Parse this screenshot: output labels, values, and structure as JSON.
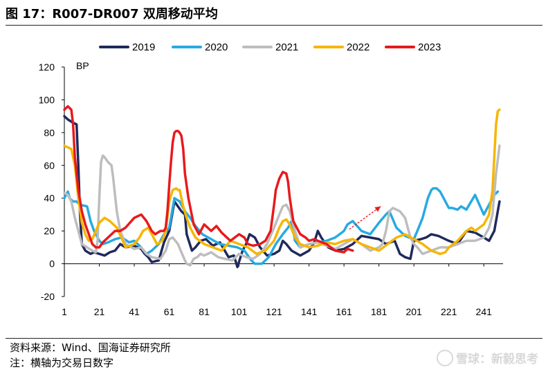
{
  "header": {
    "title": "图 17：R007-DR007 双周移动平均"
  },
  "footer": {
    "source": "资料来源：Wind、国海证券研究所",
    "note": "注：横轴为交易日数字"
  },
  "watermark": {
    "text": "雪球：新毅思考"
  },
  "chart_data": {
    "type": "line",
    "title": "",
    "xlabel": "",
    "ylabel": "BP",
    "xlim": [
      1,
      252
    ],
    "ylim": [
      -20,
      120
    ],
    "xticks": [
      1,
      21,
      41,
      61,
      81,
      101,
      121,
      141,
      161,
      181,
      201,
      221,
      241
    ],
    "yticks": [
      -20,
      0,
      20,
      40,
      60,
      80,
      100,
      120
    ],
    "legend_position": "top",
    "grid": false,
    "colors": {
      "2019": "#1f2a5c",
      "2020": "#27aae1",
      "2021": "#bdbdbd",
      "2022": "#f7b500",
      "2023": "#e8191c",
      "arrow": "#e8191c"
    },
    "series": [
      {
        "name": "2019",
        "x": [
          1,
          3,
          6,
          8,
          9,
          10,
          11,
          12,
          13,
          16,
          18,
          21,
          24,
          27,
          30,
          33,
          36,
          41,
          45,
          47,
          49,
          51,
          55,
          58,
          61,
          64,
          66,
          68,
          70,
          71,
          74,
          76,
          79,
          82,
          86,
          90,
          95,
          98,
          100,
          103,
          105,
          107,
          110,
          113,
          117,
          121,
          124,
          126,
          128,
          131,
          136,
          141,
          144,
          146,
          148,
          152,
          156,
          161,
          166,
          171,
          176,
          181,
          185,
          190,
          193,
          196,
          199,
          201,
          205,
          208,
          211,
          215,
          221,
          226,
          231,
          236,
          241,
          244,
          247,
          249,
          250
        ],
        "y": [
          90,
          88,
          86,
          85,
          60,
          30,
          12,
          10,
          8,
          6,
          7,
          6,
          5,
          7,
          8,
          12,
          10,
          11,
          9,
          6,
          4,
          1,
          2,
          13,
          20,
          38,
          35,
          32,
          30,
          18,
          8,
          10,
          14,
          15,
          11,
          13,
          4,
          5,
          -2,
          8,
          12,
          18,
          16,
          10,
          5,
          6,
          8,
          14,
          12,
          8,
          5,
          8,
          13,
          20,
          16,
          10,
          8,
          9,
          12,
          17,
          16,
          15,
          12,
          14,
          6,
          4,
          3,
          14,
          15,
          16,
          18,
          17,
          14,
          12,
          20,
          19,
          16,
          14,
          20,
          32,
          38
        ]
      },
      {
        "name": "2020",
        "x": [
          1,
          3,
          4,
          6,
          8,
          10,
          14,
          16,
          18,
          20,
          21,
          23,
          26,
          30,
          34,
          38,
          41,
          45,
          48,
          51,
          55,
          58,
          61,
          64,
          67,
          70,
          73,
          76,
          80,
          85,
          90,
          95,
          100,
          104,
          106,
          108,
          110,
          114,
          118,
          122,
          126,
          129,
          131,
          133,
          136,
          141,
          146,
          151,
          156,
          161,
          163,
          166,
          171,
          176,
          181,
          185,
          187,
          191,
          196,
          201,
          203,
          206,
          209,
          211,
          212,
          214,
          216,
          221,
          223,
          226,
          228,
          231,
          236,
          241,
          245,
          247,
          249
        ],
        "y": [
          40,
          44,
          40,
          38,
          38,
          36,
          35,
          26,
          20,
          16,
          14,
          12,
          13,
          15,
          16,
          13,
          14,
          10,
          6,
          8,
          12,
          18,
          22,
          40,
          38,
          32,
          28,
          23,
          18,
          15,
          12,
          11,
          10,
          8,
          5,
          2,
          0,
          0,
          4,
          12,
          18,
          22,
          26,
          14,
          10,
          12,
          13,
          14,
          16,
          20,
          24,
          26,
          20,
          18,
          25,
          30,
          32,
          22,
          17,
          15,
          20,
          28,
          40,
          45,
          46,
          46,
          44,
          34,
          34,
          33,
          35,
          33,
          42,
          30,
          38,
          42,
          44
        ]
      },
      {
        "name": "2021",
        "x": [
          1,
          3,
          5,
          7,
          9,
          11,
          14,
          17,
          19,
          20,
          21,
          22,
          23,
          24,
          26,
          28,
          29,
          31,
          33,
          36,
          41,
          45,
          48,
          51,
          56,
          59,
          61,
          63,
          66,
          68,
          70,
          71,
          73,
          75,
          77,
          79,
          81,
          85,
          89,
          93,
          97,
          101,
          105,
          109,
          113,
          117,
          121,
          124,
          126,
          128,
          130,
          133,
          136,
          141,
          146,
          151,
          156,
          161,
          166,
          171,
          176,
          181,
          183,
          185,
          187,
          189,
          193,
          196,
          199,
          201,
          203,
          206,
          211,
          216,
          221,
          226,
          231,
          236,
          241,
          244,
          246,
          248,
          250
        ],
        "y": [
          43,
          42,
          38,
          28,
          20,
          12,
          10,
          8,
          7,
          14,
          40,
          62,
          66,
          65,
          62,
          60,
          52,
          32,
          20,
          12,
          9,
          10,
          6,
          4,
          3,
          8,
          15,
          16,
          12,
          7,
          2,
          0,
          -1,
          3,
          4,
          6,
          5,
          7,
          4,
          3,
          2,
          6,
          4,
          3,
          6,
          12,
          22,
          30,
          35,
          36,
          32,
          20,
          10,
          12,
          13,
          11,
          9,
          12,
          15,
          12,
          8,
          10,
          12,
          20,
          32,
          34,
          32,
          28,
          16,
          12,
          10,
          6,
          8,
          10,
          10,
          12,
          14,
          14,
          16,
          22,
          30,
          55,
          72
        ]
      },
      {
        "name": "2022",
        "x": [
          1,
          3,
          5,
          7,
          9,
          11,
          13,
          15,
          17,
          19,
          21,
          24,
          27,
          31,
          34,
          36,
          41,
          44,
          46,
          49,
          51,
          54,
          57,
          59,
          61,
          63,
          65,
          66,
          67,
          69,
          71,
          73,
          76,
          81,
          86,
          91,
          96,
          101,
          106,
          111,
          116,
          121,
          124,
          126,
          128,
          130,
          133,
          136,
          141,
          146,
          151,
          156,
          161,
          166,
          171,
          176,
          181,
          186,
          191,
          196,
          201,
          206,
          211,
          216,
          219,
          221,
          226,
          231,
          234,
          236,
          241,
          244,
          246,
          248,
          249,
          250
        ],
        "y": [
          72,
          71,
          70,
          60,
          40,
          25,
          18,
          14,
          15,
          20,
          25,
          28,
          26,
          22,
          15,
          10,
          12,
          16,
          20,
          22,
          18,
          12,
          14,
          20,
          38,
          45,
          46,
          45,
          45,
          35,
          28,
          22,
          16,
          12,
          10,
          8,
          14,
          12,
          10,
          6,
          8,
          14,
          22,
          26,
          27,
          24,
          16,
          12,
          10,
          11,
          13,
          12,
          14,
          15,
          12,
          10,
          8,
          12,
          16,
          18,
          15,
          12,
          8,
          6,
          7,
          10,
          14,
          20,
          22,
          20,
          24,
          30,
          45,
          85,
          93,
          94
        ]
      },
      {
        "name": "2023",
        "x": [
          1,
          2,
          3,
          4,
          5,
          6,
          7,
          9,
          11,
          13,
          15,
          17,
          19,
          21,
          23,
          26,
          30,
          33,
          36,
          41,
          45,
          48,
          51,
          53,
          56,
          58,
          59,
          60,
          61,
          62,
          63,
          64,
          65,
          66,
          67,
          68,
          69,
          70,
          72,
          75,
          78,
          81,
          83,
          85,
          88,
          91,
          93,
          96,
          101,
          104,
          106,
          109,
          113,
          116,
          119,
          121,
          122,
          124,
          126,
          128,
          129,
          130,
          132,
          134,
          136,
          139,
          141,
          144,
          146,
          151,
          156,
          161,
          163,
          166
        ],
        "y": [
          94,
          95,
          96,
          95,
          94,
          85,
          65,
          45,
          32,
          24,
          18,
          12,
          10,
          10,
          13,
          16,
          20,
          20,
          22,
          28,
          30,
          26,
          20,
          18,
          20,
          20,
          22,
          32,
          48,
          62,
          74,
          80,
          81,
          81,
          80,
          78,
          70,
          55,
          40,
          24,
          18,
          24,
          22,
          20,
          23,
          19,
          17,
          14,
          18,
          16,
          12,
          11,
          12,
          14,
          20,
          36,
          45,
          52,
          56,
          55,
          50,
          40,
          26,
          22,
          18,
          16,
          14,
          15,
          14,
          12,
          8,
          7,
          9,
          8
        ]
      }
    ],
    "annotations": [
      {
        "type": "arrow",
        "style": "dashed",
        "from": [
          164,
          21
        ],
        "to": [
          182,
          35
        ]
      }
    ]
  }
}
